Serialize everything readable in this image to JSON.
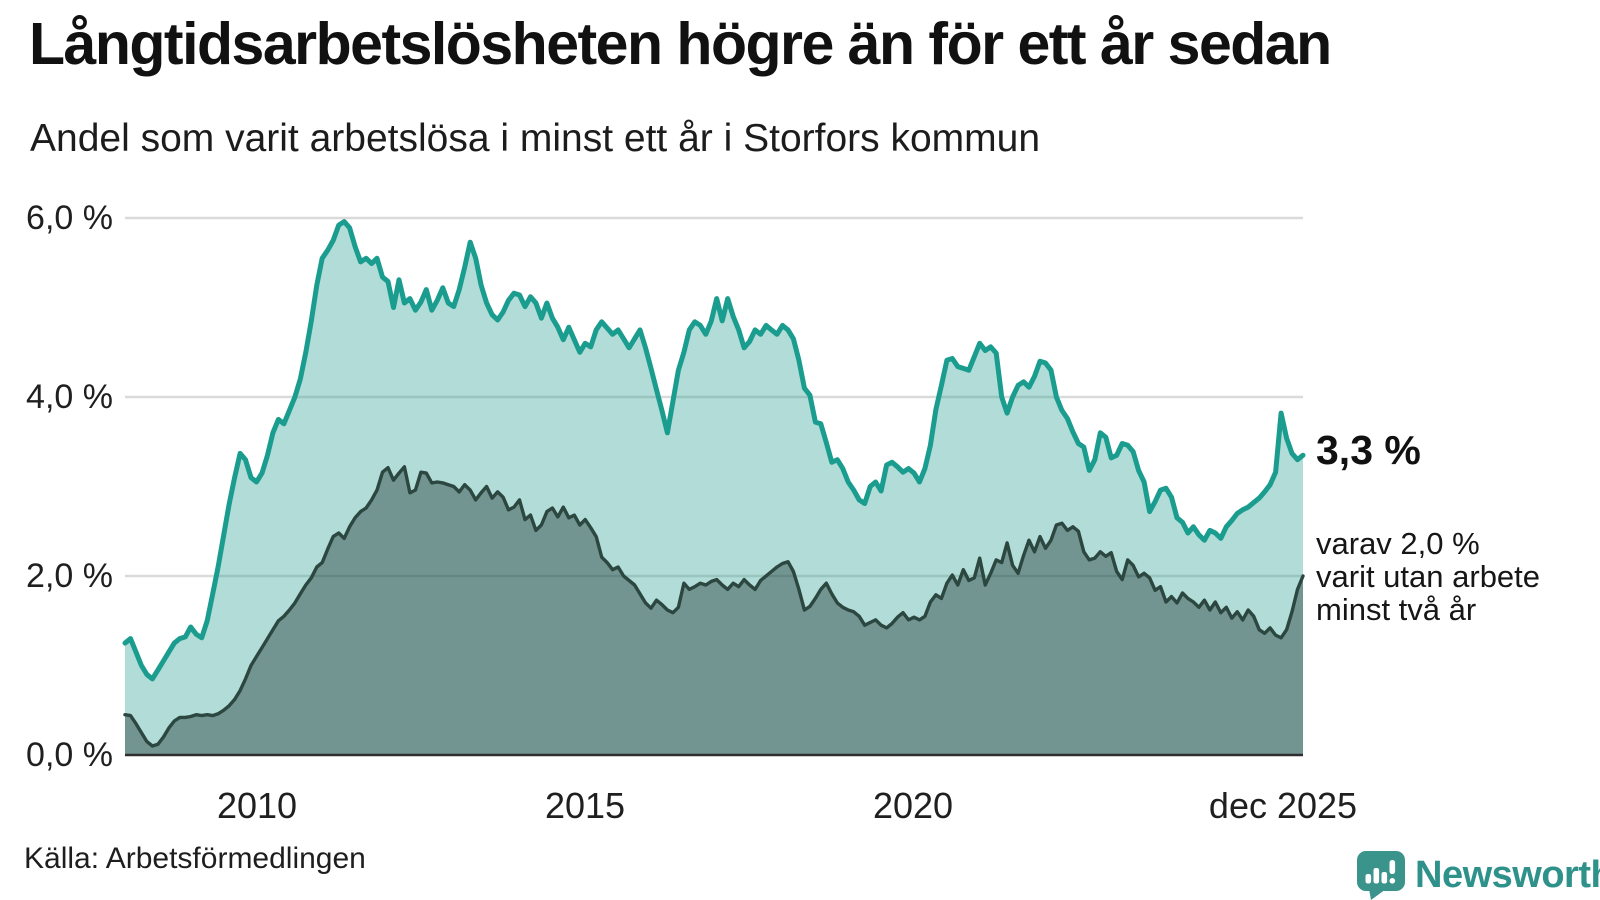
{
  "header": {
    "title": "Långtidsarbetslösheten högre än för ett år sedan",
    "subtitle": "Andel som varit arbetslösa i minst ett år i Storfors kommun"
  },
  "chart_data": {
    "type": "area",
    "title": "Långtidsarbetslösheten högre än för ett år sedan",
    "subtitle": "Andel som varit arbetslösa i minst ett år i Storfors kommun",
    "unit": "%",
    "freq": "monthly",
    "x_start": "jan 2008",
    "x_end": "dec 2025",
    "ylim": [
      0,
      6
    ],
    "grid": "horizontal",
    "y_tick_labels": [
      "0,0 %",
      "2,0 %",
      "4,0 %",
      "6,0 %"
    ],
    "y_tick_values": [
      0,
      2,
      4,
      6
    ],
    "x_tick_labels": [
      "2010",
      "2015",
      "2020",
      "dec 2025"
    ],
    "x_tick_month_indices": [
      24,
      84,
      144,
      215
    ],
    "series": [
      {
        "name": "Andel arbetslösa minst ett år",
        "end_label": "3,3 %",
        "end_value": 3.3,
        "color": "#1a9c8e",
        "fill": "rgba(31,154,139,0.35)",
        "values": [
          1.25,
          1.3,
          1.15,
          1.0,
          0.9,
          0.85,
          0.95,
          1.05,
          1.15,
          1.25,
          1.3,
          1.32,
          1.43,
          1.35,
          1.31,
          1.5,
          1.8,
          2.1,
          2.45,
          2.8,
          3.1,
          3.37,
          3.3,
          3.1,
          3.05,
          3.15,
          3.35,
          3.6,
          3.75,
          3.7,
          3.85,
          4.0,
          4.2,
          4.5,
          4.85,
          5.25,
          5.55,
          5.64,
          5.75,
          5.92,
          5.96,
          5.89,
          5.68,
          5.51,
          5.55,
          5.49,
          5.55,
          5.34,
          5.29,
          5.0,
          5.31,
          5.05,
          5.1,
          4.97,
          5.06,
          5.2,
          4.97,
          5.08,
          5.22,
          5.05,
          5.01,
          5.2,
          5.45,
          5.73,
          5.55,
          5.25,
          5.05,
          4.92,
          4.86,
          4.95,
          5.08,
          5.16,
          5.14,
          5.01,
          5.12,
          5.05,
          4.88,
          5.05,
          4.88,
          4.78,
          4.64,
          4.78,
          4.64,
          4.5,
          4.6,
          4.56,
          4.75,
          4.84,
          4.77,
          4.7,
          4.75,
          4.65,
          4.55,
          4.65,
          4.75,
          4.55,
          4.32,
          4.08,
          3.85,
          3.6,
          3.95,
          4.3,
          4.5,
          4.75,
          4.84,
          4.8,
          4.7,
          4.85,
          5.1,
          4.85,
          5.1,
          4.9,
          4.75,
          4.55,
          4.62,
          4.75,
          4.7,
          4.8,
          4.75,
          4.7,
          4.8,
          4.75,
          4.65,
          4.41,
          4.1,
          4.02,
          3.72,
          3.7,
          3.49,
          3.27,
          3.3,
          3.2,
          3.05,
          2.96,
          2.85,
          2.81,
          3.0,
          3.05,
          2.95,
          3.24,
          3.27,
          3.22,
          3.16,
          3.2,
          3.15,
          3.05,
          3.2,
          3.46,
          3.86,
          4.13,
          4.41,
          4.43,
          4.34,
          4.32,
          4.3,
          4.45,
          4.6,
          4.52,
          4.56,
          4.49,
          4.0,
          3.82,
          4.0,
          4.13,
          4.17,
          4.11,
          4.23,
          4.4,
          4.38,
          4.3,
          4.0,
          3.85,
          3.76,
          3.61,
          3.48,
          3.44,
          3.18,
          3.3,
          3.6,
          3.55,
          3.32,
          3.35,
          3.48,
          3.46,
          3.39,
          3.18,
          3.05,
          2.72,
          2.83,
          2.96,
          2.98,
          2.88,
          2.65,
          2.6,
          2.48,
          2.55,
          2.46,
          2.4,
          2.51,
          2.48,
          2.42,
          2.55,
          2.62,
          2.7,
          2.74,
          2.77,
          2.82,
          2.87,
          2.94,
          3.02,
          3.16,
          3.82,
          3.54,
          3.37,
          3.3,
          3.35
        ]
      },
      {
        "name": "varav utan arbete minst två år",
        "end_label": "varav 2,0 % varit utan arbete minst två år",
        "end_value": 2.0,
        "color": "#2c4640",
        "fill": "rgba(38,62,59,0.45)",
        "values": [
          0.45,
          0.44,
          0.35,
          0.25,
          0.15,
          0.1,
          0.12,
          0.2,
          0.3,
          0.38,
          0.42,
          0.42,
          0.43,
          0.45,
          0.44,
          0.45,
          0.44,
          0.46,
          0.5,
          0.55,
          0.62,
          0.72,
          0.85,
          1.0,
          1.1,
          1.2,
          1.3,
          1.4,
          1.5,
          1.55,
          1.62,
          1.7,
          1.8,
          1.9,
          1.98,
          2.1,
          2.15,
          2.3,
          2.44,
          2.48,
          2.42,
          2.55,
          2.65,
          2.72,
          2.76,
          2.85,
          2.96,
          3.16,
          3.21,
          3.07,
          3.15,
          3.22,
          2.93,
          2.96,
          3.16,
          3.15,
          3.04,
          3.05,
          3.04,
          3.02,
          3.0,
          2.94,
          3.02,
          2.96,
          2.85,
          2.93,
          3.0,
          2.87,
          2.94,
          2.88,
          2.74,
          2.77,
          2.85,
          2.63,
          2.68,
          2.51,
          2.57,
          2.72,
          2.76,
          2.66,
          2.77,
          2.65,
          2.68,
          2.57,
          2.63,
          2.54,
          2.44,
          2.21,
          2.15,
          2.07,
          2.1,
          2.0,
          1.95,
          1.9,
          1.8,
          1.7,
          1.64,
          1.73,
          1.68,
          1.62,
          1.59,
          1.65,
          1.92,
          1.85,
          1.88,
          1.92,
          1.9,
          1.94,
          1.96,
          1.9,
          1.85,
          1.92,
          1.88,
          1.96,
          1.9,
          1.85,
          1.95,
          2.0,
          2.05,
          2.1,
          2.14,
          2.16,
          2.05,
          1.85,
          1.62,
          1.66,
          1.75,
          1.85,
          1.92,
          1.8,
          1.7,
          1.65,
          1.62,
          1.6,
          1.55,
          1.45,
          1.48,
          1.51,
          1.45,
          1.42,
          1.47,
          1.54,
          1.59,
          1.51,
          1.54,
          1.51,
          1.55,
          1.71,
          1.79,
          1.75,
          1.92,
          2.01,
          1.9,
          2.07,
          1.95,
          1.98,
          2.2,
          1.9,
          2.03,
          2.18,
          2.15,
          2.37,
          2.12,
          2.03,
          2.23,
          2.4,
          2.27,
          2.44,
          2.31,
          2.4,
          2.57,
          2.59,
          2.51,
          2.55,
          2.5,
          2.27,
          2.18,
          2.2,
          2.27,
          2.22,
          2.26,
          2.05,
          1.96,
          2.18,
          2.12,
          1.99,
          2.03,
          1.98,
          1.84,
          1.88,
          1.71,
          1.77,
          1.7,
          1.81,
          1.75,
          1.71,
          1.65,
          1.73,
          1.62,
          1.71,
          1.59,
          1.65,
          1.53,
          1.6,
          1.51,
          1.62,
          1.55,
          1.4,
          1.36,
          1.42,
          1.34,
          1.31,
          1.4,
          1.6,
          1.85,
          2.0
        ]
      }
    ]
  },
  "annotations": {
    "value_label": "3,3 %",
    "sub_line1": "varav 2,0 %",
    "sub_line2": "varit utan arbete",
    "sub_line3": "minst två år"
  },
  "colors": {
    "accent_teal": "#1a9c8e",
    "dark_series": "#2c4640",
    "gridline": "#dadada",
    "axis_line": "#2e2e2e",
    "logo_teal": "#2e918a",
    "logo_bubble": "#3a948b"
  },
  "footer": {
    "source": "Källa: Arbetsförmedlingen",
    "logo_text": "Newsworthy"
  }
}
